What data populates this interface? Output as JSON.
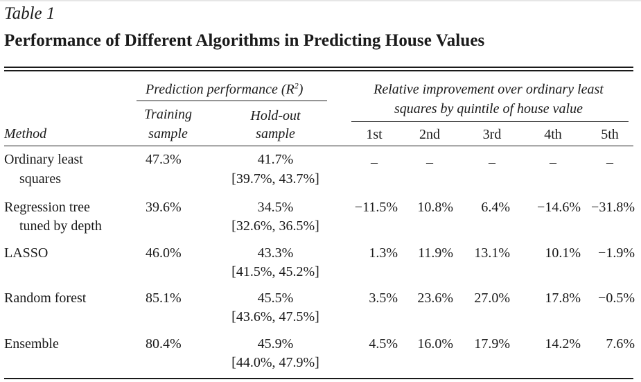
{
  "table": {
    "label": "Table 1",
    "title": "Performance of Different Algorithms in Predicting House Values",
    "group_headers": {
      "prediction_performance": "Prediction performance (R",
      "prediction_performance_sup": "2",
      "prediction_performance_close": ")",
      "relative_line1": "Relative improvement over ordinary least",
      "relative_line2": "squares by quintile of house value"
    },
    "col_headers": {
      "method": "Method",
      "training_line1": "Training",
      "training_line2": "sample",
      "holdout_line1": "Hold-out",
      "holdout_line2": "sample",
      "q1": "1st",
      "q2": "2nd",
      "q3": "3rd",
      "q4": "4th",
      "q5": "5th"
    },
    "rows": [
      {
        "method_line1": "Ordinary least",
        "method_line2": "squares",
        "training": "47.3%",
        "holdout": "41.7%",
        "holdout_ci": "[39.7%, 43.7%]",
        "q": [
          "–",
          "–",
          "–",
          "–",
          "–"
        ]
      },
      {
        "method_line1": "Regression tree",
        "method_line2": "tuned by depth",
        "training": "39.6%",
        "holdout": "34.5%",
        "holdout_ci": "[32.6%, 36.5%]",
        "q": [
          "−11.5%",
          "10.8%",
          "6.4%",
          "−14.6%",
          "−31.8%"
        ]
      },
      {
        "method_line1": "LASSO",
        "method_line2": "",
        "training": "46.0%",
        "holdout": "43.3%",
        "holdout_ci": "[41.5%, 45.2%]",
        "q": [
          "1.3%",
          "11.9%",
          "13.1%",
          "10.1%",
          "−1.9%"
        ]
      },
      {
        "method_line1": "Random forest",
        "method_line2": "",
        "training": "85.1%",
        "holdout": "45.5%",
        "holdout_ci": "[43.6%, 47.5%]",
        "q": [
          "3.5%",
          "23.6%",
          "27.0%",
          "17.8%",
          "−0.5%"
        ]
      },
      {
        "method_line1": "Ensemble",
        "method_line2": "",
        "training": "80.4%",
        "holdout": "45.9%",
        "holdout_ci": "[44.0%, 47.9%]",
        "q": [
          "4.5%",
          "16.0%",
          "17.9%",
          "14.2%",
          "7.6%"
        ]
      }
    ]
  }
}
